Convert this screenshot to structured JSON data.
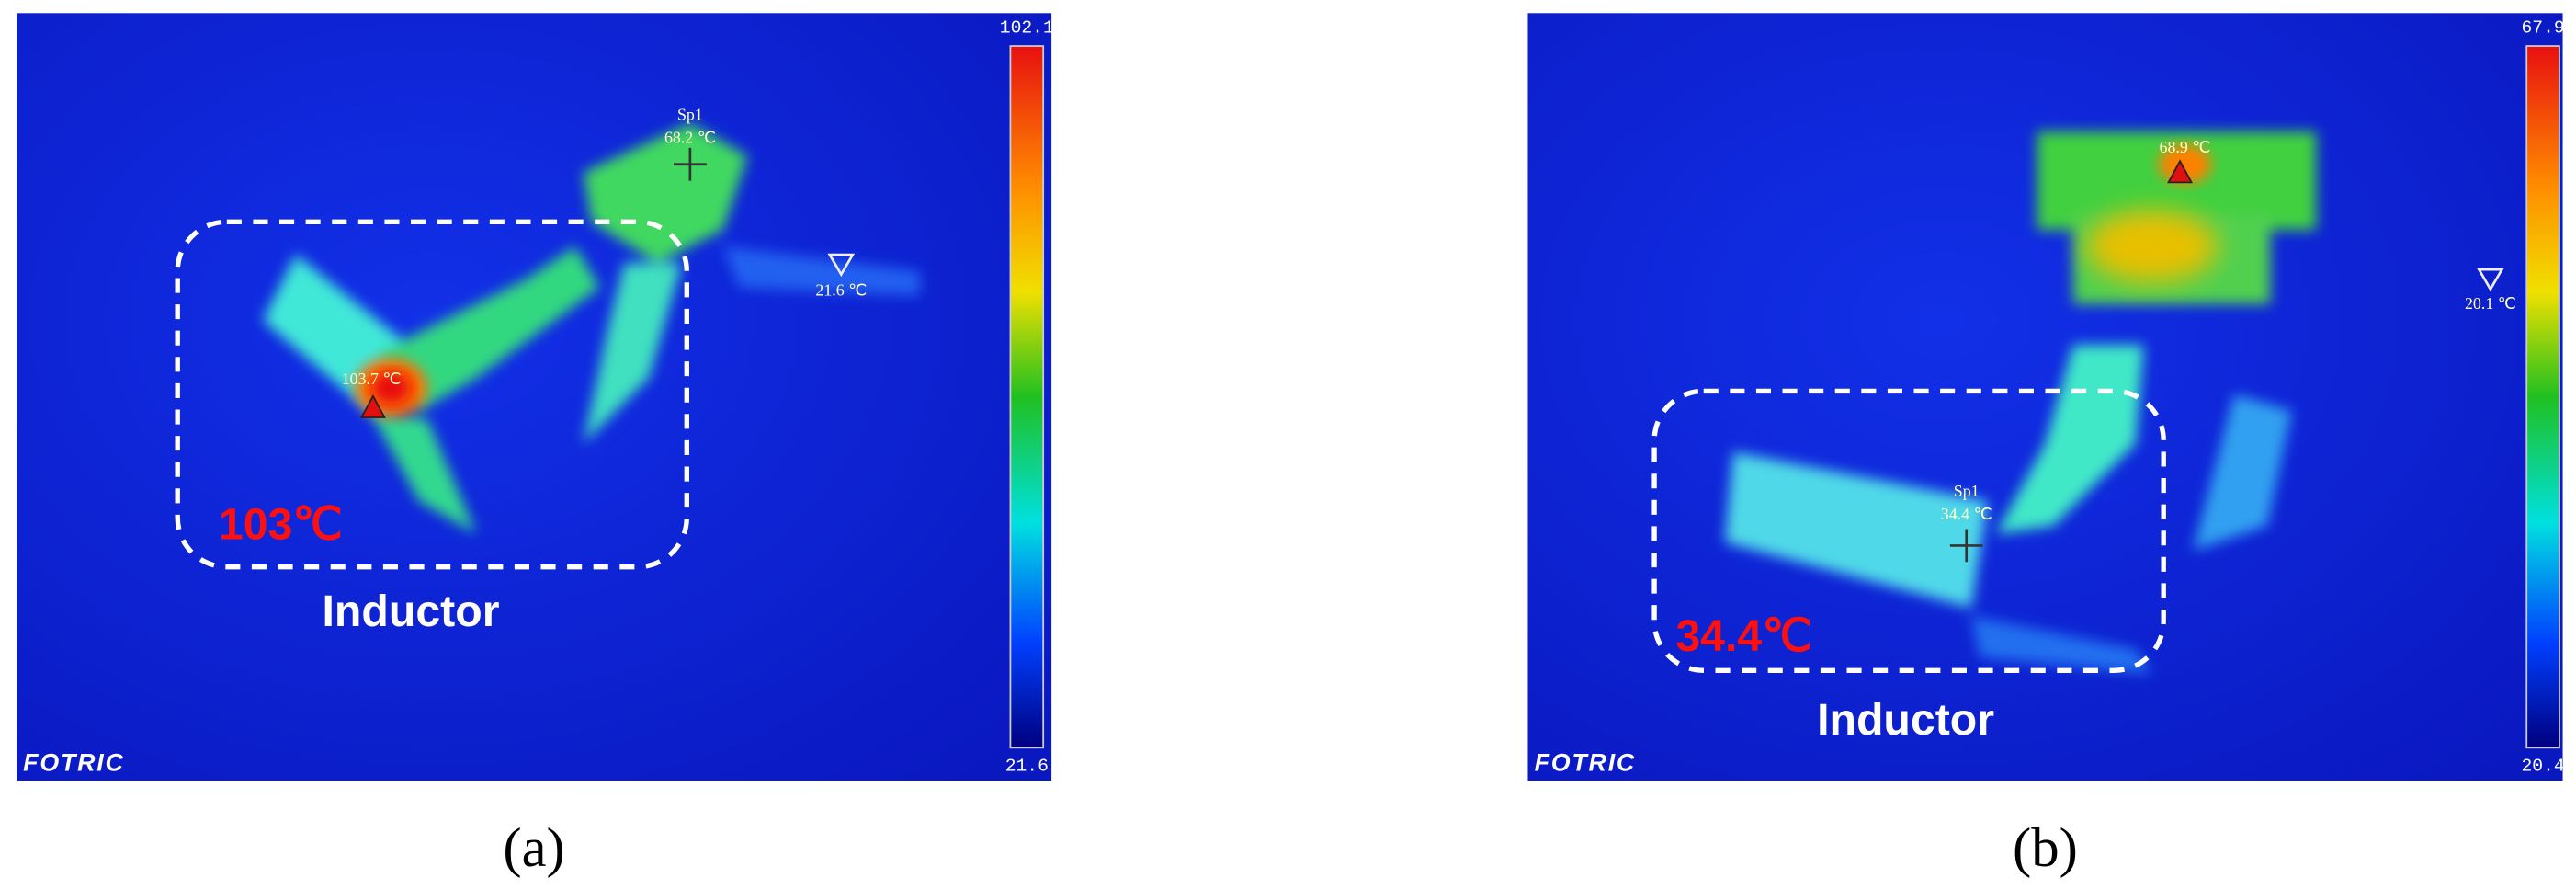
{
  "panels": [
    {
      "scale_max": "102.1",
      "scale_min": "21.6",
      "spot_name": "Sp1",
      "spot_temp": "68.2 ℃",
      "min_marker": "21.6 ℃",
      "max_marker": "103.7 ℃",
      "highlight_temp": "103℃",
      "region_label": "Inductor",
      "brand": "FOTRIC",
      "caption": "(a)"
    },
    {
      "scale_max": "67.9",
      "scale_min": "20.4",
      "spot_name": "Sp1",
      "spot_temp": "34.4 ℃",
      "min_marker": "20.1 ℃",
      "max_marker": "68.9 ℃",
      "highlight_temp": "34.4℃",
      "region_label": "Inductor",
      "brand": "FOTRIC",
      "caption": "(b)"
    }
  ]
}
